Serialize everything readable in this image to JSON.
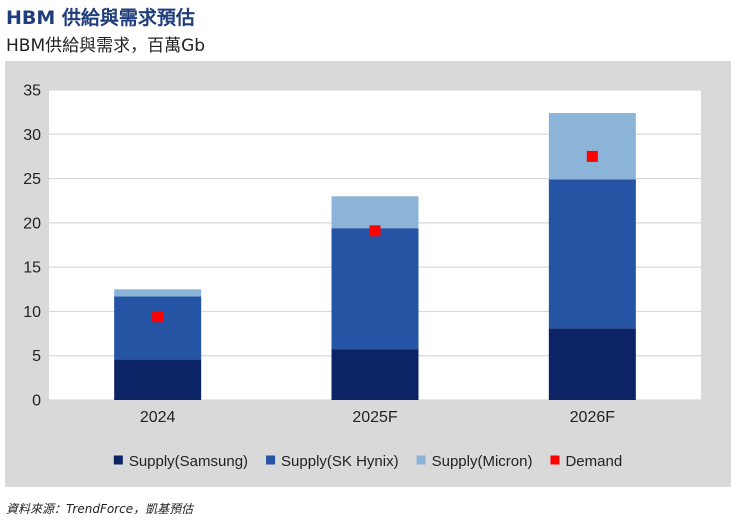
{
  "header": {
    "title": "HBM 供給與需求預估",
    "subtitle": "HBM供給與需求，百萬Gb"
  },
  "footer": {
    "source": "資料來源：TrendForce，凱基預估"
  },
  "colors": {
    "samsung": "#0c2466",
    "sk_hynix": "#2554a4",
    "micron": "#8cb4d8",
    "demand": "#ff0000",
    "grid": "#d9d9d9",
    "panel": "#d9d9d9"
  },
  "chart_data": {
    "type": "bar",
    "stacked": true,
    "title": "HBM供給與需求，百萬Gb",
    "xlabel": "",
    "ylabel": "",
    "categories": [
      "2024",
      "2025F",
      "2026F"
    ],
    "ylim": [
      0,
      35
    ],
    "yticks": [
      0,
      5,
      10,
      15,
      20,
      25,
      30,
      35
    ],
    "grid": true,
    "legend_position": "bottom",
    "series": [
      {
        "name": "Supply(Samsung)",
        "key": "samsung",
        "values": [
          4.6,
          5.7,
          8.1
        ]
      },
      {
        "name": "Supply(SK Hynix)",
        "key": "sk_hynix",
        "values": [
          7.1,
          13.7,
          16.8
        ]
      },
      {
        "name": "Supply(Micron)",
        "key": "micron",
        "values": [
          0.8,
          3.6,
          7.5
        ]
      }
    ],
    "markers": [
      {
        "name": "Demand",
        "key": "demand",
        "values": [
          9.4,
          19.1,
          27.5
        ]
      }
    ]
  }
}
